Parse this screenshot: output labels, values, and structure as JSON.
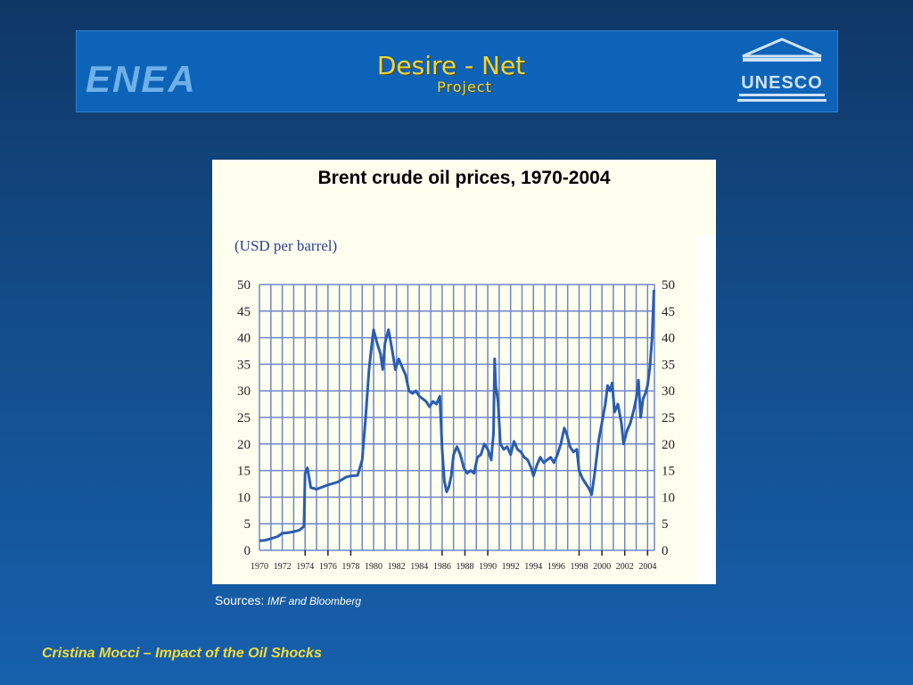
{
  "banner": {
    "left_logo_text": "ENEA",
    "title_line1": "Desire - Net",
    "title_line2": "Project",
    "right_logo_text": "UNESCO"
  },
  "chart_data": {
    "type": "line",
    "title": "Brent crude oil prices, 1970-2004",
    "unit_label": "(USD per barrel)",
    "xlim": [
      1970,
      2004.6
    ],
    "ylim": [
      0,
      50
    ],
    "y_ticks": [
      0,
      5,
      10,
      15,
      20,
      25,
      30,
      35,
      40,
      45,
      50
    ],
    "x_tick_labels": [
      "1970",
      "1972",
      "1974",
      "1976",
      "1978",
      "1980",
      "1982",
      "1984",
      "1986",
      "1988",
      "1990",
      "1992",
      "1994",
      "1996",
      "1998",
      "2000",
      "2002",
      "2004"
    ],
    "minor_x_ticks": [
      1974,
      1976,
      1978,
      1986,
      1988,
      1990,
      1998,
      2000,
      2002,
      2004
    ],
    "grid": true,
    "line_color": "#2a5db0",
    "grid_color": "#6f86c9",
    "series": [
      {
        "x": [
          1970,
          1970.5,
          1971,
          1971.6,
          1972,
          1972.5,
          1973,
          1973.5,
          1973.9,
          1974.0,
          1974.2,
          1974.5,
          1975,
          1976,
          1976.8,
          1977,
          1977.6,
          1978,
          1978.6,
          1979.0,
          1979.3,
          1979.6,
          1979.8,
          1980.0,
          1980.3,
          1980.6,
          1980.8,
          1981.0,
          1981.3,
          1981.6,
          1981.9,
          1982.2,
          1982.5,
          1982.8,
          1983.1,
          1983.4,
          1983.7,
          1984.0,
          1984.3,
          1984.6,
          1984.9,
          1985.2,
          1985.5,
          1985.8,
          1986.0,
          1986.2,
          1986.4,
          1986.6,
          1986.8,
          1987.0,
          1987.3,
          1987.6,
          1987.9,
          1988.2,
          1988.5,
          1988.8,
          1989.1,
          1989.4,
          1989.7,
          1990.0,
          1990.3,
          1990.5,
          1990.6,
          1990.7,
          1990.9,
          1991.1,
          1991.4,
          1991.7,
          1992.0,
          1992.3,
          1992.6,
          1992.9,
          1993.2,
          1993.5,
          1993.8,
          1994.0,
          1994.3,
          1994.6,
          1994.9,
          1995.2,
          1995.5,
          1995.8,
          1996.1,
          1996.4,
          1996.7,
          1996.9,
          1997.2,
          1997.5,
          1997.8,
          1998.0,
          1998.3,
          1998.6,
          1998.9,
          1999.1,
          1999.4,
          1999.7,
          2000.0,
          2000.3,
          2000.5,
          2000.7,
          2000.9,
          2001.1,
          2001.4,
          2001.7,
          2001.9,
          2002.2,
          2002.5,
          2002.8,
          2003.0,
          2003.2,
          2003.4,
          2003.6,
          2003.8,
          2004.0,
          2004.2,
          2004.4,
          2004.55
        ],
        "values": [
          1.8,
          1.9,
          2.2,
          2.6,
          3.2,
          3.3,
          3.5,
          3.8,
          4.5,
          14.5,
          15.5,
          11.8,
          11.5,
          12.3,
          12.8,
          13.0,
          13.8,
          14.0,
          14.1,
          17.0,
          25.0,
          34.0,
          38.0,
          41.5,
          39.0,
          37.0,
          34.0,
          39.0,
          41.5,
          38.0,
          34.0,
          36.0,
          34.5,
          33.0,
          30.0,
          29.5,
          30.0,
          29.0,
          28.5,
          28.0,
          27.0,
          28.0,
          27.5,
          29.0,
          19.0,
          13.0,
          11.0,
          12.0,
          14.0,
          18.0,
          19.5,
          18.0,
          15.5,
          14.5,
          15.0,
          14.5,
          17.5,
          18.0,
          20.0,
          19.0,
          17.0,
          22.0,
          36.0,
          31.0,
          28.0,
          20.0,
          19.0,
          19.5,
          18.0,
          20.5,
          19.0,
          18.5,
          17.5,
          17.0,
          15.5,
          14.0,
          16.0,
          17.5,
          16.5,
          17.0,
          17.5,
          16.5,
          18.0,
          20.0,
          23.0,
          22.0,
          19.5,
          18.5,
          19.0,
          15.0,
          13.5,
          12.5,
          11.5,
          10.5,
          15.0,
          20.5,
          24.0,
          27.5,
          31.0,
          30.0,
          31.5,
          26.0,
          27.5,
          24.0,
          20.0,
          22.5,
          24.0,
          26.5,
          28.5,
          32.0,
          25.0,
          28.5,
          29.5,
          31.0,
          34.5,
          40.0,
          49.0
        ]
      }
    ]
  },
  "sources": {
    "label": "Sources:",
    "text": "IMF and Bloomberg"
  },
  "footer": {
    "text": "Cristina Mocci – Impact of the Oil Shocks"
  }
}
